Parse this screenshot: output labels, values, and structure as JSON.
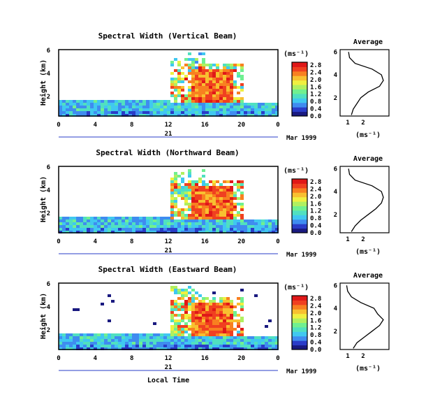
{
  "panels": [
    {
      "title": "Spectral Width (Vertical Beam)",
      "avg_ticks": [
        "1",
        "2"
      ]
    },
    {
      "title": "Spectral Width (Northward Beam)",
      "avg_ticks": [
        "1",
        "2"
      ]
    },
    {
      "title": "Spectral Width (Eastward Beam)",
      "avg_ticks": [
        "1",
        "2"
      ]
    }
  ],
  "ylabel": "Height (km)",
  "y_ticks": [
    "6",
    "4",
    "2"
  ],
  "x_ticks": [
    "0",
    "4",
    "8",
    "12",
    "16",
    "20",
    "0"
  ],
  "day_label": "21",
  "date_label": "Mar 1999",
  "xlabel": "Local Time",
  "unit_label": "(ms⁻¹)",
  "avg_title": "Average",
  "avg_xlabel": "(ms⁻¹)",
  "avg_y_ticks": [
    "6",
    "4",
    "2"
  ],
  "colorbar": {
    "ticks": [
      "2.8",
      "2.4",
      "2.0",
      "1.6",
      "1.2",
      "0.8",
      "0.4",
      "0.0"
    ],
    "colors": [
      "#1a1a80",
      "#2a3cc8",
      "#3f8cf0",
      "#40c8f0",
      "#50e0c0",
      "#70f090",
      "#b0f060",
      "#f0f040",
      "#f8c030",
      "#f88020",
      "#f04020",
      "#e01818"
    ]
  },
  "chart_data": {
    "type": "heatmap",
    "x_range_hours": [
      0,
      24
    ],
    "y_range_km": [
      0.4,
      6.2
    ],
    "colorbar_range": [
      0.0,
      2.8
    ],
    "average_profiles": [
      {
        "beam": "Vertical",
        "height_km": [
          0.5,
          1.0,
          1.5,
          2.0,
          2.5,
          3.0,
          3.5,
          4.0,
          4.5,
          5.0,
          5.5,
          6.0
        ],
        "width_ms": [
          1.1,
          1.2,
          1.4,
          1.6,
          2.0,
          2.6,
          2.8,
          2.7,
          2.2,
          1.3,
          1.0,
          0.95
        ]
      },
      {
        "beam": "Northward",
        "height_km": [
          0.5,
          1.0,
          1.5,
          2.0,
          2.5,
          3.0,
          3.5,
          4.0,
          4.5,
          5.0,
          5.5,
          6.0
        ],
        "width_ms": [
          1.1,
          1.3,
          1.6,
          2.0,
          2.4,
          2.7,
          2.8,
          2.7,
          2.2,
          1.3,
          1.0,
          0.95
        ]
      },
      {
        "beam": "Eastward",
        "height_km": [
          0.5,
          1.0,
          1.5,
          2.0,
          2.5,
          3.0,
          3.5,
          4.0,
          4.5,
          5.0,
          5.5,
          6.0
        ],
        "width_ms": [
          1.2,
          1.4,
          1.8,
          2.2,
          2.6,
          2.8,
          2.5,
          2.3,
          1.6,
          1.1,
          0.9,
          0.85
        ]
      }
    ]
  }
}
